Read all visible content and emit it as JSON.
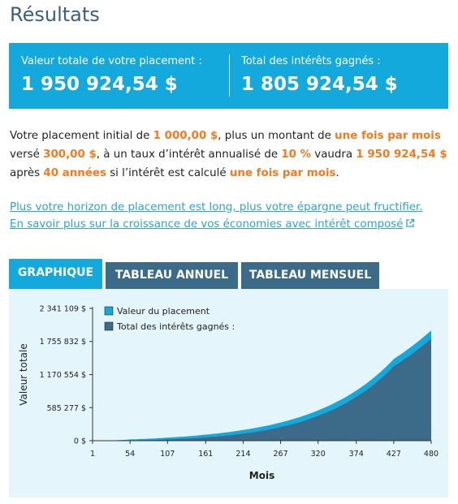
{
  "title": "Résultats",
  "summary": {
    "total_label": "Valeur totale de votre placement :",
    "total_value": "1 950 924,54 $",
    "interest_label": "Total des intérêts gagnés :",
    "interest_value": "1 805 924,54 $"
  },
  "description": {
    "p1": "Votre placement initial de ",
    "initial": "1 000,00 $",
    "p2": ", plus un montant de ",
    "frequency": "une fois par mois",
    "p3": " versé ",
    "contribution": "300,00 $",
    "p4": ", à un taux d’intérêt annualisé de ",
    "rate": "10 %",
    "p5": " vaudra ",
    "final_value": "1 950 924,54 $",
    "p6": " après ",
    "years": "40 années",
    "p7": " si l’intérêt est calculé ",
    "compounding": "une fois par mois",
    "p8": "."
  },
  "links": {
    "horizon": "Plus votre horizon de placement est long, plus votre épargne peut fructifier.",
    "learn_more": "En savoir plus sur la croissance de vos économies avec intérêt composé"
  },
  "tabs": {
    "chart": "GRAPHIQUE",
    "annual": "TABLEAU ANNUEL",
    "monthly": "TABLEAU MENSUEL",
    "active": "chart"
  },
  "colors": {
    "primary": "#13a9dc",
    "dark": "#3c6b8a",
    "highlight": "#f47a20",
    "link": "#2aa3d3",
    "panel": "#e4f5fb"
  },
  "icons": {
    "external_link": "external-link-icon"
  },
  "chart_data": {
    "type": "area",
    "xlabel": "Mois",
    "ylabel": "Valeur totale",
    "x_ticks": [
      "1",
      "54",
      "107",
      "161",
      "214",
      "267",
      "320",
      "374",
      "427",
      "480"
    ],
    "x_tick_values": [
      1,
      54,
      107,
      161,
      214,
      267,
      320,
      374,
      427,
      480
    ],
    "y_ticks": [
      "0 $",
      "585 277 $",
      "1 170 554 $",
      "1 755 832 $",
      "2 341 109 $"
    ],
    "y_tick_values": [
      0,
      585277,
      1170554,
      1755832,
      2341109
    ],
    "xlim": [
      1,
      480
    ],
    "ylim": [
      0,
      2341109
    ],
    "legend_position": "top-left",
    "series": [
      {
        "name": "Valeur du placement",
        "color": "#13a9dc",
        "x": [
          1,
          54,
          107,
          161,
          214,
          267,
          320,
          374,
          427,
          480
        ],
        "values": [
          1300,
          22800,
          54500,
          107500,
          190000,
          322000,
          536500,
          888000,
          1445000,
          1950924.54
        ]
      },
      {
        "name": "Total des intérêts gagnés :",
        "color": "#3c6b8a",
        "x": [
          1,
          54,
          107,
          161,
          214,
          267,
          320,
          374,
          427,
          480
        ],
        "values": [
          0,
          5900,
          22600,
          58800,
          125100,
          241200,
          439600,
          774900,
          1315100,
          1805924.54
        ]
      }
    ]
  }
}
